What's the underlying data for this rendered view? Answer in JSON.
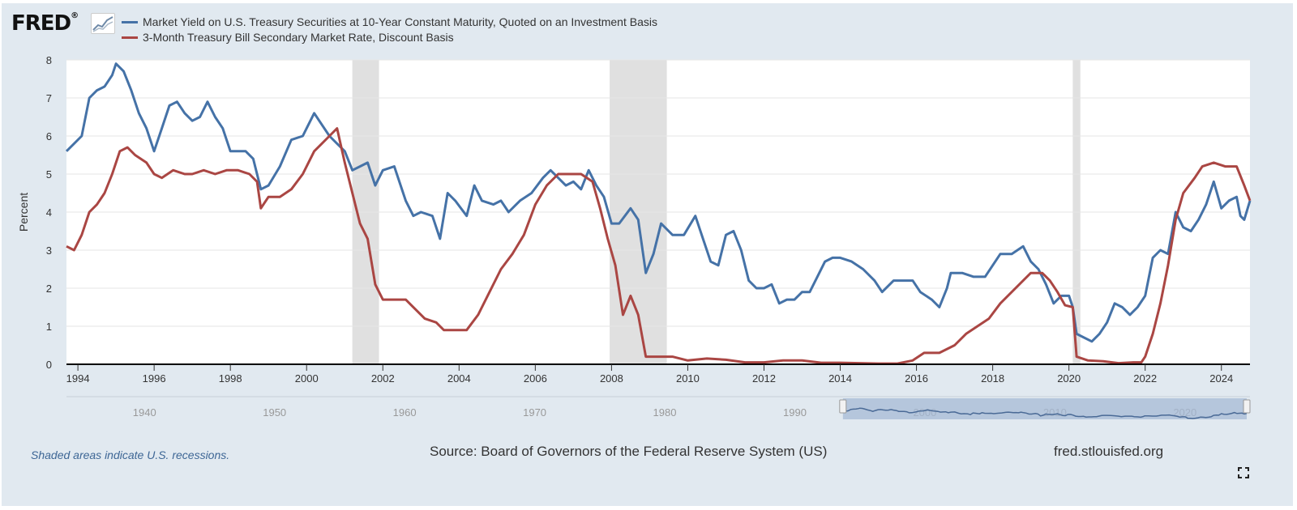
{
  "brand": {
    "logo_text": "FRED",
    "logo_mark": "®",
    "chart_icon": "line-chart-icon"
  },
  "legend": [
    {
      "label": "Market Yield on U.S. Treasury Securities at 10-Year Constant Maturity, Quoted on an Investment Basis",
      "color": "#4572a7"
    },
    {
      "label": "3-Month Treasury Bill Secondary Market Rate, Discount Basis",
      "color": "#aa4643"
    }
  ],
  "footer": {
    "recession_note": "Shaded areas indicate U.S. recessions.",
    "source": "Source: Board of Governors of the Federal Reserve System (US)",
    "site": "fred.stlouisfed.org",
    "fullscreen_icon": "fullscreen-icon"
  },
  "navigator": {
    "tick_labels": [
      "1940",
      "1950",
      "1960",
      "1970",
      "1980",
      "1990",
      "2000",
      "2010",
      "2020"
    ],
    "tick_years": [
      1940,
      1950,
      1960,
      1970,
      1980,
      1990,
      2000,
      2010,
      2020
    ],
    "range": [
      1934,
      2025
    ],
    "selected": [
      1993.7,
      2024.75
    ]
  },
  "chart_data": {
    "type": "line",
    "title": "",
    "xlabel": "",
    "ylabel": "Percent",
    "xlim": [
      1993.7,
      2024.75
    ],
    "ylim": [
      0,
      8
    ],
    "y_ticks": [
      "0",
      "1",
      "2",
      "3",
      "4",
      "5",
      "6",
      "7",
      "8"
    ],
    "x_ticks": [
      "1994",
      "1996",
      "1998",
      "2000",
      "2002",
      "2004",
      "2006",
      "2008",
      "2010",
      "2012",
      "2014",
      "2016",
      "2018",
      "2020",
      "2022",
      "2024"
    ],
    "grid": true,
    "legend_position": "top-left",
    "recessions": [
      [
        2001.2,
        2001.9
      ],
      [
        2007.95,
        2009.45
      ],
      [
        2020.1,
        2020.3
      ]
    ],
    "series": [
      {
        "name": "Market Yield on U.S. Treasury Securities at 10-Year Constant Maturity, Quoted on an Investment Basis",
        "color": "#4572a7",
        "points": [
          [
            1993.7,
            5.6
          ],
          [
            1993.9,
            5.8
          ],
          [
            1994.1,
            6.0
          ],
          [
            1994.3,
            7.0
          ],
          [
            1994.5,
            7.2
          ],
          [
            1994.7,
            7.3
          ],
          [
            1994.9,
            7.6
          ],
          [
            1995.0,
            7.9
          ],
          [
            1995.2,
            7.7
          ],
          [
            1995.4,
            7.2
          ],
          [
            1995.6,
            6.6
          ],
          [
            1995.8,
            6.2
          ],
          [
            1996.0,
            5.6
          ],
          [
            1996.2,
            6.2
          ],
          [
            1996.4,
            6.8
          ],
          [
            1996.6,
            6.9
          ],
          [
            1996.8,
            6.6
          ],
          [
            1997.0,
            6.4
          ],
          [
            1997.2,
            6.5
          ],
          [
            1997.4,
            6.9
          ],
          [
            1997.6,
            6.5
          ],
          [
            1997.8,
            6.2
          ],
          [
            1998.0,
            5.6
          ],
          [
            1998.2,
            5.6
          ],
          [
            1998.4,
            5.6
          ],
          [
            1998.6,
            5.4
          ],
          [
            1998.8,
            4.6
          ],
          [
            1999.0,
            4.7
          ],
          [
            1999.3,
            5.2
          ],
          [
            1999.6,
            5.9
          ],
          [
            1999.9,
            6.0
          ],
          [
            2000.0,
            6.2
          ],
          [
            2000.2,
            6.6
          ],
          [
            2000.4,
            6.3
          ],
          [
            2000.6,
            6.0
          ],
          [
            2000.8,
            5.8
          ],
          [
            2001.0,
            5.6
          ],
          [
            2001.2,
            5.1
          ],
          [
            2001.4,
            5.2
          ],
          [
            2001.6,
            5.3
          ],
          [
            2001.8,
            4.7
          ],
          [
            2002.0,
            5.1
          ],
          [
            2002.3,
            5.2
          ],
          [
            2002.6,
            4.3
          ],
          [
            2002.8,
            3.9
          ],
          [
            2003.0,
            4.0
          ],
          [
            2003.3,
            3.9
          ],
          [
            2003.5,
            3.3
          ],
          [
            2003.7,
            4.5
          ],
          [
            2003.9,
            4.3
          ],
          [
            2004.2,
            3.9
          ],
          [
            2004.4,
            4.7
          ],
          [
            2004.6,
            4.3
          ],
          [
            2004.9,
            4.2
          ],
          [
            2005.1,
            4.3
          ],
          [
            2005.3,
            4.0
          ],
          [
            2005.6,
            4.3
          ],
          [
            2005.9,
            4.5
          ],
          [
            2006.2,
            4.9
          ],
          [
            2006.4,
            5.1
          ],
          [
            2006.6,
            4.9
          ],
          [
            2006.8,
            4.7
          ],
          [
            2007.0,
            4.8
          ],
          [
            2007.2,
            4.6
          ],
          [
            2007.4,
            5.1
          ],
          [
            2007.6,
            4.7
          ],
          [
            2007.8,
            4.4
          ],
          [
            2008.0,
            3.7
          ],
          [
            2008.2,
            3.7
          ],
          [
            2008.5,
            4.1
          ],
          [
            2008.7,
            3.8
          ],
          [
            2008.9,
            2.4
          ],
          [
            2009.1,
            2.9
          ],
          [
            2009.3,
            3.7
          ],
          [
            2009.6,
            3.4
          ],
          [
            2009.9,
            3.4
          ],
          [
            2010.2,
            3.9
          ],
          [
            2010.4,
            3.3
          ],
          [
            2010.6,
            2.7
          ],
          [
            2010.8,
            2.6
          ],
          [
            2011.0,
            3.4
          ],
          [
            2011.2,
            3.5
          ],
          [
            2011.4,
            3.0
          ],
          [
            2011.6,
            2.2
          ],
          [
            2011.8,
            2.0
          ],
          [
            2012.0,
            2.0
          ],
          [
            2012.2,
            2.1
          ],
          [
            2012.4,
            1.6
          ],
          [
            2012.6,
            1.7
          ],
          [
            2012.8,
            1.7
          ],
          [
            2013.0,
            1.9
          ],
          [
            2013.2,
            1.9
          ],
          [
            2013.4,
            2.3
          ],
          [
            2013.6,
            2.7
          ],
          [
            2013.8,
            2.8
          ],
          [
            2014.0,
            2.8
          ],
          [
            2014.3,
            2.7
          ],
          [
            2014.6,
            2.5
          ],
          [
            2014.9,
            2.2
          ],
          [
            2015.1,
            1.9
          ],
          [
            2015.4,
            2.2
          ],
          [
            2015.7,
            2.2
          ],
          [
            2015.9,
            2.2
          ],
          [
            2016.1,
            1.9
          ],
          [
            2016.4,
            1.7
          ],
          [
            2016.6,
            1.5
          ],
          [
            2016.8,
            2.0
          ],
          [
            2016.9,
            2.4
          ],
          [
            2017.2,
            2.4
          ],
          [
            2017.5,
            2.3
          ],
          [
            2017.8,
            2.3
          ],
          [
            2018.0,
            2.6
          ],
          [
            2018.2,
            2.9
          ],
          [
            2018.5,
            2.9
          ],
          [
            2018.8,
            3.1
          ],
          [
            2019.0,
            2.7
          ],
          [
            2019.2,
            2.5
          ],
          [
            2019.4,
            2.1
          ],
          [
            2019.6,
            1.6
          ],
          [
            2019.8,
            1.8
          ],
          [
            2020.0,
            1.8
          ],
          [
            2020.1,
            1.5
          ],
          [
            2020.2,
            0.8
          ],
          [
            2020.4,
            0.7
          ],
          [
            2020.6,
            0.6
          ],
          [
            2020.8,
            0.8
          ],
          [
            2021.0,
            1.1
          ],
          [
            2021.2,
            1.6
          ],
          [
            2021.4,
            1.5
          ],
          [
            2021.6,
            1.3
          ],
          [
            2021.8,
            1.5
          ],
          [
            2022.0,
            1.8
          ],
          [
            2022.2,
            2.8
          ],
          [
            2022.4,
            3.0
          ],
          [
            2022.6,
            2.9
          ],
          [
            2022.8,
            4.0
          ],
          [
            2023.0,
            3.6
          ],
          [
            2023.2,
            3.5
          ],
          [
            2023.4,
            3.8
          ],
          [
            2023.6,
            4.2
          ],
          [
            2023.8,
            4.8
          ],
          [
            2024.0,
            4.1
          ],
          [
            2024.2,
            4.3
          ],
          [
            2024.4,
            4.4
          ],
          [
            2024.5,
            3.9
          ],
          [
            2024.6,
            3.8
          ],
          [
            2024.75,
            4.3
          ]
        ]
      },
      {
        "name": "3-Month Treasury Bill Secondary Market Rate, Discount Basis",
        "color": "#aa4643",
        "points": [
          [
            1993.7,
            3.1
          ],
          [
            1993.9,
            3.0
          ],
          [
            1994.1,
            3.4
          ],
          [
            1994.3,
            4.0
          ],
          [
            1994.5,
            4.2
          ],
          [
            1994.7,
            4.5
          ],
          [
            1994.9,
            5.0
          ],
          [
            1995.1,
            5.6
          ],
          [
            1995.3,
            5.7
          ],
          [
            1995.5,
            5.5
          ],
          [
            1995.8,
            5.3
          ],
          [
            1996.0,
            5.0
          ],
          [
            1996.2,
            4.9
          ],
          [
            1996.5,
            5.1
          ],
          [
            1996.8,
            5.0
          ],
          [
            1997.0,
            5.0
          ],
          [
            1997.3,
            5.1
          ],
          [
            1997.6,
            5.0
          ],
          [
            1997.9,
            5.1
          ],
          [
            1998.2,
            5.1
          ],
          [
            1998.5,
            5.0
          ],
          [
            1998.7,
            4.8
          ],
          [
            1998.8,
            4.1
          ],
          [
            1999.0,
            4.4
          ],
          [
            1999.3,
            4.4
          ],
          [
            1999.6,
            4.6
          ],
          [
            1999.9,
            5.0
          ],
          [
            2000.2,
            5.6
          ],
          [
            2000.4,
            5.8
          ],
          [
            2000.6,
            6.0
          ],
          [
            2000.8,
            6.2
          ],
          [
            2001.0,
            5.3
          ],
          [
            2001.2,
            4.5
          ],
          [
            2001.4,
            3.7
          ],
          [
            2001.6,
            3.3
          ],
          [
            2001.8,
            2.1
          ],
          [
            2002.0,
            1.7
          ],
          [
            2002.3,
            1.7
          ],
          [
            2002.6,
            1.7
          ],
          [
            2002.9,
            1.4
          ],
          [
            2003.1,
            1.2
          ],
          [
            2003.4,
            1.1
          ],
          [
            2003.6,
            0.9
          ],
          [
            2003.9,
            0.9
          ],
          [
            2004.2,
            0.9
          ],
          [
            2004.5,
            1.3
          ],
          [
            2004.8,
            1.9
          ],
          [
            2005.1,
            2.5
          ],
          [
            2005.4,
            2.9
          ],
          [
            2005.7,
            3.4
          ],
          [
            2006.0,
            4.2
          ],
          [
            2006.3,
            4.7
          ],
          [
            2006.6,
            5.0
          ],
          [
            2006.9,
            5.0
          ],
          [
            2007.2,
            5.0
          ],
          [
            2007.5,
            4.8
          ],
          [
            2007.7,
            4.1
          ],
          [
            2007.9,
            3.3
          ],
          [
            2008.1,
            2.6
          ],
          [
            2008.3,
            1.3
          ],
          [
            2008.5,
            1.8
          ],
          [
            2008.7,
            1.3
          ],
          [
            2008.9,
            0.2
          ],
          [
            2009.2,
            0.2
          ],
          [
            2009.6,
            0.2
          ],
          [
            2010.0,
            0.1
          ],
          [
            2010.5,
            0.15
          ],
          [
            2011.0,
            0.12
          ],
          [
            2011.5,
            0.05
          ],
          [
            2012.0,
            0.05
          ],
          [
            2012.5,
            0.1
          ],
          [
            2013.0,
            0.1
          ],
          [
            2013.5,
            0.04
          ],
          [
            2014.0,
            0.04
          ],
          [
            2014.5,
            0.03
          ],
          [
            2015.0,
            0.02
          ],
          [
            2015.5,
            0.02
          ],
          [
            2015.9,
            0.1
          ],
          [
            2016.2,
            0.3
          ],
          [
            2016.6,
            0.3
          ],
          [
            2017.0,
            0.5
          ],
          [
            2017.3,
            0.8
          ],
          [
            2017.6,
            1.0
          ],
          [
            2017.9,
            1.2
          ],
          [
            2018.2,
            1.6
          ],
          [
            2018.5,
            1.9
          ],
          [
            2018.8,
            2.2
          ],
          [
            2019.0,
            2.4
          ],
          [
            2019.3,
            2.4
          ],
          [
            2019.5,
            2.2
          ],
          [
            2019.7,
            1.9
          ],
          [
            2019.9,
            1.55
          ],
          [
            2020.1,
            1.5
          ],
          [
            2020.2,
            0.2
          ],
          [
            2020.5,
            0.1
          ],
          [
            2020.9,
            0.08
          ],
          [
            2021.3,
            0.03
          ],
          [
            2021.7,
            0.05
          ],
          [
            2021.9,
            0.05
          ],
          [
            2022.0,
            0.2
          ],
          [
            2022.2,
            0.8
          ],
          [
            2022.4,
            1.6
          ],
          [
            2022.6,
            2.6
          ],
          [
            2022.8,
            3.8
          ],
          [
            2023.0,
            4.5
          ],
          [
            2023.3,
            4.9
          ],
          [
            2023.5,
            5.2
          ],
          [
            2023.8,
            5.3
          ],
          [
            2024.1,
            5.2
          ],
          [
            2024.4,
            5.2
          ],
          [
            2024.6,
            4.7
          ],
          [
            2024.75,
            4.3
          ]
        ]
      }
    ]
  }
}
